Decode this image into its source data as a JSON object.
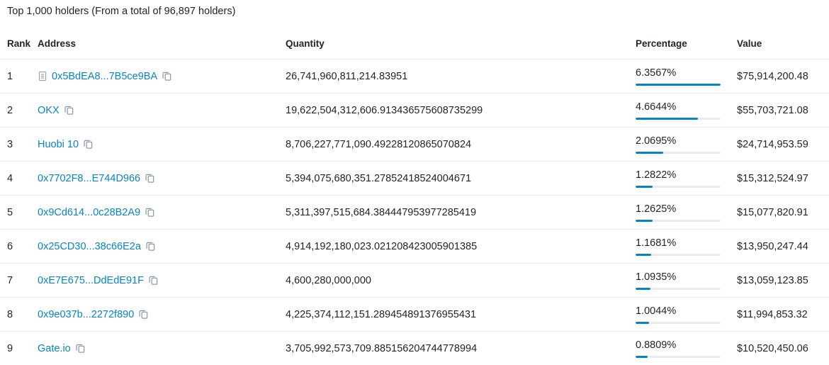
{
  "title": "Top 1,000 holders (From a total of 96,897 holders)",
  "colors": {
    "link_blue": "#0784c3",
    "bar_fill": "#0784c3",
    "bar_track": "#e9ecef",
    "row_border": "#e9ecef",
    "text": "#212529",
    "icon_gray": "#8c98a4"
  },
  "table": {
    "headers": {
      "rank": "Rank",
      "address": "Address",
      "quantity": "Quantity",
      "percentage": "Percentage",
      "value": "Value"
    },
    "rows": [
      {
        "rank": "1",
        "address": "0x5BdEA8...7B5ce9BA",
        "has_document_icon": true,
        "quantity": "26,741,960,811,214.83951",
        "percentage": "6.3567%",
        "bar_fill_pct": 100,
        "value": "$75,914,200.48"
      },
      {
        "rank": "2",
        "address": "OKX",
        "has_document_icon": false,
        "quantity": "19,622,504,312,606.913436575608735299",
        "percentage": "4.6644%",
        "bar_fill_pct": 73.4,
        "value": "$55,703,721.08"
      },
      {
        "rank": "3",
        "address": "Huobi 10",
        "has_document_icon": false,
        "quantity": "8,706,227,771,090.49228120865070824",
        "percentage": "2.0695%",
        "bar_fill_pct": 32.6,
        "value": "$24,714,953.59"
      },
      {
        "rank": "4",
        "address": "0x7702F8...E744D966",
        "has_document_icon": false,
        "quantity": "5,394,075,680,351.27852418524004671",
        "percentage": "1.2822%",
        "bar_fill_pct": 20.2,
        "value": "$15,312,524.97"
      },
      {
        "rank": "5",
        "address": "0x9Cd614...0c28B2A9",
        "has_document_icon": false,
        "quantity": "5,311,397,515,684.384447953977285419",
        "percentage": "1.2625%",
        "bar_fill_pct": 19.9,
        "value": "$15,077,820.91"
      },
      {
        "rank": "6",
        "address": "0x25CD30...38c66E2a",
        "has_document_icon": false,
        "quantity": "4,914,192,180,023.021208423005901385",
        "percentage": "1.1681%",
        "bar_fill_pct": 18.4,
        "value": "$13,950,247.44"
      },
      {
        "rank": "7",
        "address": "0xE7E675...DdEdE91F",
        "has_document_icon": false,
        "quantity": "4,600,280,000,000",
        "percentage": "1.0935%",
        "bar_fill_pct": 17.2,
        "value": "$13,059,123.85"
      },
      {
        "rank": "8",
        "address": "0x9e037b...2272f890",
        "has_document_icon": false,
        "quantity": "4,225,374,112,151.289454891376955431",
        "percentage": "1.0044%",
        "bar_fill_pct": 15.8,
        "value": "$11,994,853.32"
      },
      {
        "rank": "9",
        "address": "Gate.io",
        "has_document_icon": false,
        "quantity": "3,705,992,573,709.885156204744778994",
        "percentage": "0.8809%",
        "bar_fill_pct": 13.9,
        "value": "$10,520,450.06"
      }
    ]
  }
}
